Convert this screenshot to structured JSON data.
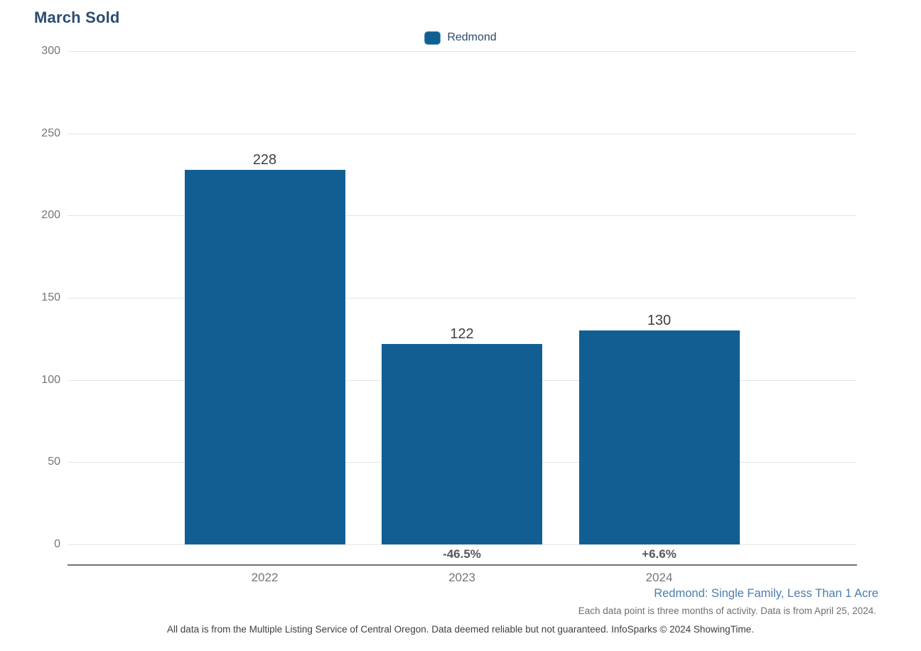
{
  "title": "March Sold",
  "legend": {
    "label": "Redmond"
  },
  "colors": {
    "bar": "#115e93",
    "title": "#2b4d70",
    "segment_text": "#4d7cb0",
    "gridline": "#e4e4e4",
    "tick_text": "#757575"
  },
  "chart_data": {
    "type": "bar",
    "title": "March Sold",
    "categories": [
      "2022",
      "2023",
      "2024"
    ],
    "series": [
      {
        "name": "Redmond",
        "values": [
          228,
          122,
          130
        ]
      }
    ],
    "value_labels": [
      "228",
      "122",
      "130"
    ],
    "pct_change_labels": [
      "",
      "-46.5%",
      "+6.6%"
    ],
    "xlabel": "",
    "ylabel": "",
    "ylim": [
      0,
      300
    ],
    "yticks": [
      0,
      50,
      100,
      150,
      200,
      250,
      300
    ],
    "grid": true,
    "legend_entries": [
      "Redmond"
    ],
    "legend_position": "top-center"
  },
  "footer": {
    "segment_label": "Redmond: Single Family, Less Than 1 Acre",
    "data_note": "Each data point is three months of activity. Data is from April 25, 2024.",
    "disclaimer": "All data is from the Multiple Listing Service of Central Oregon. Data deemed reliable but not guaranteed. InfoSparks © 2024 ShowingTime."
  }
}
